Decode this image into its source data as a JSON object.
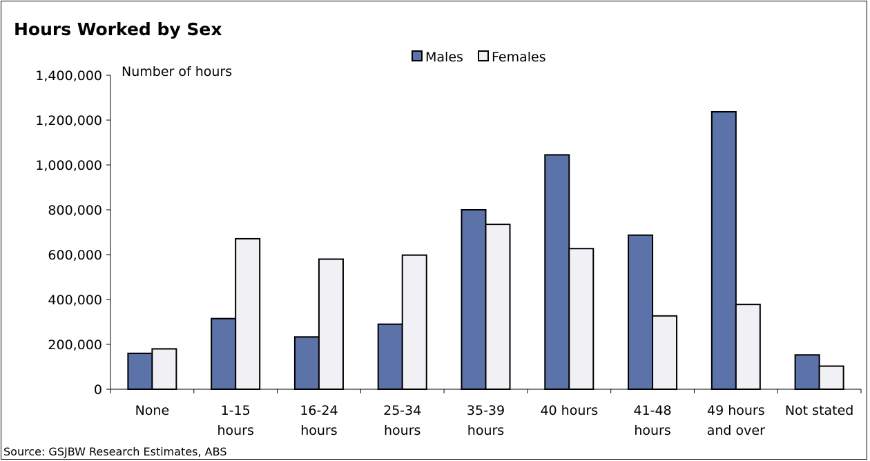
{
  "chart_data": {
    "type": "bar",
    "title": "Hours Worked by Sex",
    "ylabel": "Number of hours",
    "xlabel": "",
    "source": "Source: GSJBW Research Estimates, ABS",
    "categories": [
      [
        "None"
      ],
      [
        "1-15",
        "hours"
      ],
      [
        "16-24",
        "hours"
      ],
      [
        "25-34",
        "hours"
      ],
      [
        "35-39",
        "hours"
      ],
      [
        "40 hours"
      ],
      [
        "41-48",
        "hours"
      ],
      [
        "49 hours",
        "and over"
      ],
      [
        "Not stated"
      ]
    ],
    "series": [
      {
        "name": "Males",
        "color": "#5b73a9",
        "values": [
          160000,
          315000,
          233000,
          290000,
          800000,
          1045000,
          687000,
          1237000,
          153000
        ]
      },
      {
        "name": "Females",
        "color": "#f0f0f5",
        "values": [
          180000,
          671000,
          580000,
          598000,
          735000,
          627000,
          327000,
          378000,
          103000
        ]
      }
    ],
    "ylim": [
      0,
      1400000
    ],
    "yticks": [
      0,
      200000,
      400000,
      600000,
      800000,
      1000000,
      1200000,
      1400000
    ],
    "ytick_labels": [
      "0",
      "200,000",
      "400,000",
      "600,000",
      "800,000",
      "1,000,000",
      "1,200,000",
      "1,400,000"
    ],
    "grid": false,
    "legend_position": "top-center"
  }
}
